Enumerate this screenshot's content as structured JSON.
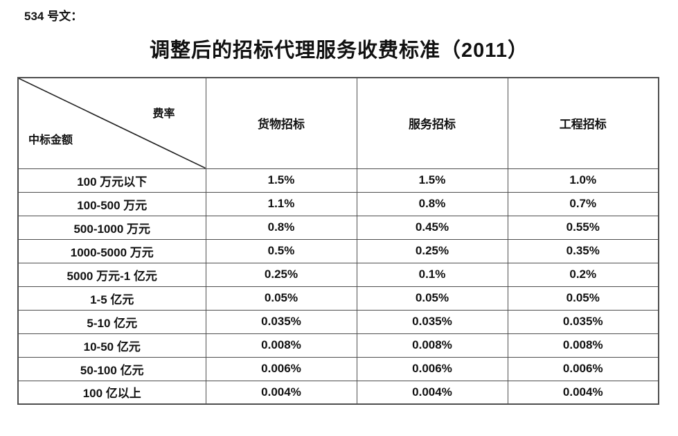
{
  "page": {
    "doc_label": "534 号文：",
    "title": "调整后的招标代理服务收费标准（2011）"
  },
  "table": {
    "corner": {
      "top_right_label": "费率",
      "bottom_left_label": "中标金额"
    },
    "columns": [
      "货物招标",
      "服务招标",
      "工程招标"
    ],
    "rows": [
      {
        "label": "100 万元以下",
        "values": [
          "1.5%",
          "1.5%",
          "1.0%"
        ]
      },
      {
        "label": "100-500 万元",
        "values": [
          "1.1%",
          "0.8%",
          "0.7%"
        ]
      },
      {
        "label": "500-1000 万元",
        "values": [
          "0.8%",
          "0.45%",
          "0.55%"
        ]
      },
      {
        "label": "1000-5000 万元",
        "values": [
          "0.5%",
          "0.25%",
          "0.35%"
        ]
      },
      {
        "label": "5000 万元-1 亿元",
        "values": [
          "0.25%",
          "0.1%",
          "0.2%"
        ]
      },
      {
        "label": "1-5 亿元",
        "values": [
          "0.05%",
          "0.05%",
          "0.05%"
        ]
      },
      {
        "label": "5-10 亿元",
        "values": [
          "0.035%",
          "0.035%",
          "0.035%"
        ]
      },
      {
        "label": "10-50 亿元",
        "values": [
          "0.008%",
          "0.008%",
          "0.008%"
        ]
      },
      {
        "label": "50-100 亿元",
        "values": [
          "0.006%",
          "0.006%",
          "0.006%"
        ]
      },
      {
        "label": "100 亿以上",
        "values": [
          "0.004%",
          "0.004%",
          "0.004%"
        ]
      }
    ]
  },
  "colors": {
    "border": "#4d4d4d",
    "text": "#111111",
    "background": "#ffffff"
  }
}
